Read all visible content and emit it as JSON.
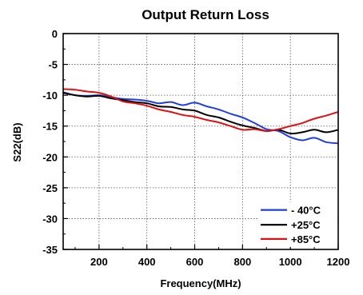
{
  "chart_data": {
    "type": "line",
    "title": "Output Return Loss",
    "xlabel": "Frequency(MHz)",
    "ylabel": "S22(dB)",
    "xlim": [
      50,
      1200
    ],
    "ylim": [
      -35,
      0
    ],
    "xticks": [
      200,
      400,
      600,
      800,
      1000,
      1200
    ],
    "yticks": [
      0,
      -5,
      -10,
      -15,
      -20,
      -25,
      -30,
      -35
    ],
    "grid": "dotted",
    "legend_position": "bottom-right",
    "series": [
      {
        "name": "- 40°C",
        "color": "#1f3fe0",
        "points": [
          [
            50,
            -9.5
          ],
          [
            100,
            -10.0
          ],
          [
            150,
            -10.1
          ],
          [
            200,
            -10.0
          ],
          [
            250,
            -10.3
          ],
          [
            300,
            -10.6
          ],
          [
            350,
            -10.7
          ],
          [
            400,
            -10.9
          ],
          [
            450,
            -11.3
          ],
          [
            500,
            -11.1
          ],
          [
            550,
            -11.6
          ],
          [
            600,
            -11.2
          ],
          [
            650,
            -11.8
          ],
          [
            700,
            -12.3
          ],
          [
            750,
            -13.0
          ],
          [
            800,
            -13.6
          ],
          [
            850,
            -14.5
          ],
          [
            900,
            -15.5
          ],
          [
            950,
            -15.8
          ],
          [
            1000,
            -16.8
          ],
          [
            1050,
            -17.3
          ],
          [
            1100,
            -16.9
          ],
          [
            1150,
            -17.6
          ],
          [
            1200,
            -17.8
          ]
        ]
      },
      {
        "name": "+25°C",
        "color": "#000000",
        "points": [
          [
            50,
            -9.6
          ],
          [
            100,
            -10.0
          ],
          [
            150,
            -10.2
          ],
          [
            200,
            -10.1
          ],
          [
            250,
            -10.5
          ],
          [
            300,
            -10.8
          ],
          [
            350,
            -11.1
          ],
          [
            400,
            -11.3
          ],
          [
            450,
            -11.8
          ],
          [
            500,
            -11.9
          ],
          [
            550,
            -12.3
          ],
          [
            600,
            -12.5
          ],
          [
            650,
            -13.2
          ],
          [
            700,
            -13.6
          ],
          [
            750,
            -14.3
          ],
          [
            800,
            -14.9
          ],
          [
            850,
            -15.3
          ],
          [
            900,
            -15.8
          ],
          [
            950,
            -15.6
          ],
          [
            1000,
            -16.2
          ],
          [
            1050,
            -16.0
          ],
          [
            1100,
            -15.6
          ],
          [
            1150,
            -16.0
          ],
          [
            1200,
            -15.6
          ]
        ]
      },
      {
        "name": "+85°C",
        "color": "#e01010",
        "points": [
          [
            50,
            -9.0
          ],
          [
            100,
            -9.1
          ],
          [
            150,
            -9.4
          ],
          [
            200,
            -9.6
          ],
          [
            250,
            -10.2
          ],
          [
            300,
            -11.0
          ],
          [
            350,
            -11.3
          ],
          [
            400,
            -11.7
          ],
          [
            450,
            -12.3
          ],
          [
            500,
            -12.7
          ],
          [
            550,
            -13.2
          ],
          [
            600,
            -13.5
          ],
          [
            650,
            -14.0
          ],
          [
            700,
            -14.4
          ],
          [
            750,
            -15.0
          ],
          [
            800,
            -15.6
          ],
          [
            850,
            -15.5
          ],
          [
            900,
            -15.8
          ],
          [
            950,
            -15.5
          ],
          [
            1000,
            -15.0
          ],
          [
            1050,
            -14.5
          ],
          [
            1100,
            -13.8
          ],
          [
            1150,
            -13.3
          ],
          [
            1200,
            -12.7
          ]
        ]
      }
    ]
  }
}
